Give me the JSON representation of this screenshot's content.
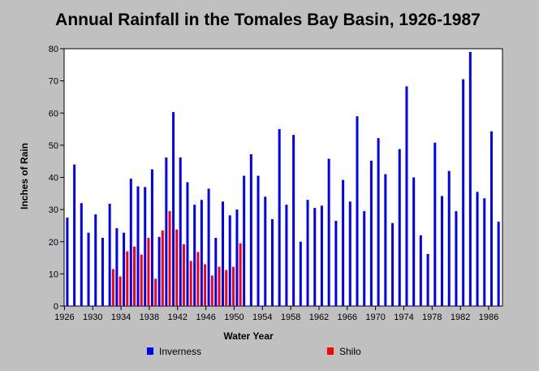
{
  "chart_data": {
    "type": "bar",
    "title": "Annual Rainfall in the Tomales Bay Basin, 1926-1987",
    "xlabel": "Water Year",
    "ylabel": "Inches of Rain",
    "ylim": [
      0,
      80
    ],
    "yticks": [
      0,
      10,
      20,
      30,
      40,
      50,
      60,
      70,
      80
    ],
    "xticks": [
      "1926",
      "1930",
      "1934",
      "1938",
      "1942",
      "1946",
      "1950",
      "1954",
      "1958",
      "1962",
      "1966",
      "1970",
      "1974",
      "1978",
      "1982",
      "1986"
    ],
    "grid": false,
    "legend_position": "bottom",
    "years": [
      1926,
      1927,
      1928,
      1929,
      1930,
      1931,
      1932,
      1933,
      1934,
      1935,
      1936,
      1937,
      1938,
      1939,
      1940,
      1941,
      1942,
      1943,
      1944,
      1945,
      1946,
      1947,
      1948,
      1949,
      1950,
      1951,
      1952,
      1953,
      1954,
      1955,
      1956,
      1957,
      1958,
      1959,
      1960,
      1961,
      1962,
      1963,
      1964,
      1965,
      1966,
      1967,
      1968,
      1969,
      1970,
      1971,
      1972,
      1973,
      1974,
      1975,
      1976,
      1977,
      1978,
      1979,
      1980,
      1981,
      1982,
      1983,
      1984,
      1985,
      1986,
      1987
    ],
    "series": [
      {
        "name": "Inverness",
        "color": "#0000ff",
        "values": [
          27.5,
          44,
          32,
          22.8,
          28.5,
          21.2,
          31.8,
          24.2,
          22.8,
          39.6,
          37.2,
          37,
          42.5,
          21.5,
          46.2,
          60.3,
          46.2,
          38.5,
          31.5,
          33,
          36.5,
          21.2,
          32.5,
          28.2,
          30,
          40.5,
          47.2,
          40.5,
          34,
          27,
          55,
          31.5,
          53.2,
          20,
          33,
          30.5,
          31.2,
          45.8,
          26.5,
          39.2,
          32.5,
          59,
          29.5,
          45.2,
          52.2,
          41,
          25.8,
          48.8,
          68.3,
          40,
          22,
          16.2,
          50.8,
          34.2,
          42,
          29.5,
          70.5,
          79,
          35.5,
          33.5,
          54.3,
          26.2
        ]
      },
      {
        "name": "Shilo",
        "color": "#ff0000",
        "values": [
          null,
          null,
          null,
          null,
          null,
          null,
          null,
          11.5,
          9.2,
          17,
          18.5,
          16,
          21.2,
          8.5,
          23.5,
          29.5,
          23.8,
          19.2,
          14,
          16.8,
          13,
          9.5,
          12.2,
          11.2,
          12.2,
          19.5,
          null,
          null,
          null,
          null,
          null,
          null,
          null,
          null,
          null,
          null,
          null,
          null,
          null,
          null,
          null,
          null,
          null,
          null,
          null,
          null,
          null,
          null,
          null,
          null,
          null,
          null,
          null,
          null,
          null,
          null,
          null,
          null,
          null,
          null,
          null,
          null
        ]
      }
    ]
  }
}
